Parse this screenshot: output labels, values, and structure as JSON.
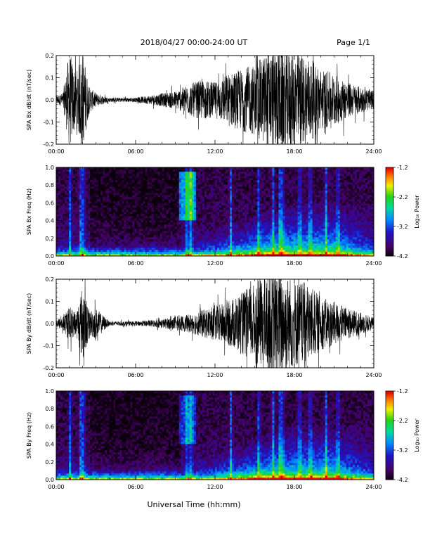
{
  "header": {
    "title": "2018/04/27  00:00-24:00 UT",
    "page": "Page 1/1"
  },
  "xaxis_label": "Universal Time (hh:mm)",
  "time_ticks": [
    "00:00",
    "06:00",
    "12:00",
    "18:00",
    "24:00"
  ],
  "colorbar": {
    "label": "Log₁₀ Power",
    "ticks": [
      "-1.2",
      "-2.2",
      "-3.2",
      "-4.2"
    ],
    "min": -4.2,
    "max": -1.2
  },
  "chart_data": [
    {
      "type": "line",
      "name": "SPA Bx dB/dt (nT/sec)",
      "ylabel": "SPA Bx dB/dt (nT/sec)",
      "xlim": [
        0,
        24
      ],
      "ylim": [
        -0.2,
        0.2
      ],
      "y_ticks": [
        "0.2",
        "0.1",
        "0.0",
        "-0.1",
        "-0.2"
      ],
      "x_ticks": [
        "00:00",
        "06:00",
        "12:00",
        "18:00",
        "24:00"
      ],
      "envelope_hours": [
        0,
        0.5,
        1.0,
        1.5,
        2.0,
        2.5,
        3.0,
        4.0,
        6.0,
        8.0,
        9.0,
        10.0,
        11.0,
        12.0,
        13.0,
        14.0,
        15.0,
        16.0,
        17.0,
        18.0,
        19.0,
        20.0,
        21.0,
        22.0,
        23.0,
        24.0
      ],
      "envelope_amplitude_nT_per_sec": [
        0.02,
        0.03,
        0.22,
        0.12,
        0.22,
        0.06,
        0.03,
        0.01,
        0.01,
        0.03,
        0.04,
        0.07,
        0.09,
        0.08,
        0.12,
        0.14,
        0.16,
        0.22,
        0.24,
        0.22,
        0.2,
        0.14,
        0.12,
        0.08,
        0.06,
        0.04
      ]
    },
    {
      "type": "heatmap",
      "name": "SPA Bx Freq (Hz)",
      "ylabel": "SPA Bx Freq (Hz)",
      "xlim": [
        0,
        24
      ],
      "ylim": [
        0,
        1.0
      ],
      "y_ticks": [
        "1.0",
        "0.8",
        "0.6",
        "0.4",
        "0.2",
        "0.0"
      ],
      "x_ticks": [
        "00:00",
        "06:00",
        "12:00",
        "18:00",
        "24:00"
      ],
      "color_scale": "Log10 Power",
      "zlim": [
        -4.2,
        -1.2
      ]
    },
    {
      "type": "line",
      "name": "SPA By dB/dt (nT/sec)",
      "ylabel": "SPA By dB/dt (nT/sec)",
      "xlim": [
        0,
        24
      ],
      "ylim": [
        -0.2,
        0.2
      ],
      "y_ticks": [
        "0.2",
        "0.1",
        "0.0",
        "-0.1",
        "-0.2"
      ],
      "x_ticks": [
        "00:00",
        "06:00",
        "12:00",
        "18:00",
        "24:00"
      ],
      "envelope_hours": [
        0,
        0.5,
        1.0,
        1.5,
        2.0,
        2.5,
        3.0,
        4.0,
        6.0,
        8.0,
        9.0,
        10.0,
        11.0,
        12.0,
        13.0,
        14.0,
        15.0,
        16.0,
        17.0,
        18.0,
        19.0,
        20.0,
        21.0,
        22.0,
        23.0,
        24.0
      ],
      "envelope_amplitude_nT_per_sec": [
        0.02,
        0.03,
        0.08,
        0.05,
        0.18,
        0.06,
        0.07,
        0.01,
        0.01,
        0.02,
        0.03,
        0.04,
        0.06,
        0.08,
        0.1,
        0.14,
        0.18,
        0.22,
        0.24,
        0.2,
        0.18,
        0.12,
        0.1,
        0.07,
        0.05,
        0.03
      ]
    },
    {
      "type": "heatmap",
      "name": "SPA By Freq (Hz)",
      "ylabel": "SPA By Freq (Hz)",
      "xlim": [
        0,
        24
      ],
      "ylim": [
        0,
        1.0
      ],
      "y_ticks": [
        "1.0",
        "0.8",
        "0.6",
        "0.4",
        "0.2",
        "0.0"
      ],
      "x_ticks": [
        "00:00",
        "06:00",
        "12:00",
        "18:00",
        "24:00"
      ],
      "color_scale": "Log10 Power",
      "zlim": [
        -4.2,
        -1.2
      ]
    }
  ]
}
